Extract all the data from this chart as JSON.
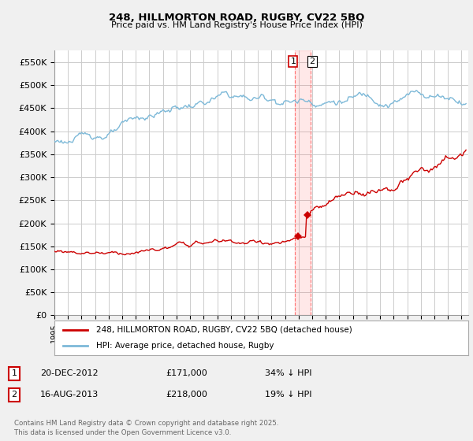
{
  "title": "248, HILLMORTON ROAD, RUGBY, CV22 5BQ",
  "subtitle": "Price paid vs. HM Land Registry's House Price Index (HPI)",
  "ylabel_ticks": [
    "£0",
    "£50K",
    "£100K",
    "£150K",
    "£200K",
    "£250K",
    "£300K",
    "£350K",
    "£400K",
    "£450K",
    "£500K",
    "£550K"
  ],
  "ytick_vals": [
    0,
    50000,
    100000,
    150000,
    200000,
    250000,
    300000,
    350000,
    400000,
    450000,
    500000,
    550000
  ],
  "ylim": [
    0,
    575000
  ],
  "xlim_start": 1995.0,
  "xlim_end": 2025.5,
  "hpi_color": "#7db9d8",
  "price_color": "#cc0000",
  "background_color": "#f0f0f0",
  "plot_bg_color": "#ffffff",
  "grid_color": "#cccccc",
  "vline_x1": 2012.7,
  "vline_x2": 2013.9,
  "vline_color": "#ff6666",
  "legend_label_1": "248, HILLMORTON ROAD, RUGBY, CV22 5BQ (detached house)",
  "legend_label_2": "HPI: Average price, detached house, Rugby",
  "annotation_1_box": "1",
  "annotation_1_date": "20-DEC-2012",
  "annotation_1_price": "£171,000",
  "annotation_1_hpi": "34% ↓ HPI",
  "annotation_2_box": "2",
  "annotation_2_date": "16-AUG-2013",
  "annotation_2_price": "£218,000",
  "annotation_2_hpi": "19% ↓ HPI",
  "footnote": "Contains HM Land Registry data © Crown copyright and database right 2025.\nThis data is licensed under the Open Government Licence v3.0.",
  "marker1_x": 2012.97,
  "marker1_y": 171000,
  "marker2_x": 2013.62,
  "marker2_y": 218000
}
